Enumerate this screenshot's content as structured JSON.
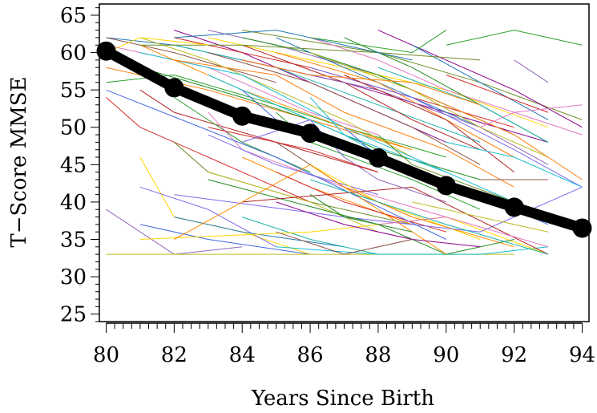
{
  "chart_data": {
    "type": "line",
    "title": "",
    "xlabel": "Years Since Birth",
    "ylabel": "T−Score MMSE",
    "xlim": [
      79.8,
      94.2
    ],
    "ylim": [
      24,
      66.5
    ],
    "x_ticks": [
      80,
      82,
      84,
      86,
      88,
      90,
      92,
      94
    ],
    "x_tick_labels": [
      "80",
      "82",
      "84",
      "86",
      "88",
      "90",
      "92",
      "94"
    ],
    "y_ticks": [
      25,
      30,
      35,
      40,
      45,
      50,
      55,
      60,
      65
    ],
    "y_tick_labels": [
      "25",
      "30",
      "35",
      "40",
      "45",
      "50",
      "55",
      "60",
      "65"
    ],
    "x_minor_step": 0.25,
    "y_minor_step": 1,
    "grid": false,
    "legend": "none",
    "mean_trajectory": {
      "color": "#000000",
      "x": [
        80,
        82,
        84,
        86,
        88,
        90,
        92,
        94
      ],
      "y": [
        60.2,
        55.3,
        51.5,
        49.2,
        45.9,
        42.2,
        39.3,
        36.5
      ]
    },
    "individual_colors": [
      "#1f77b4",
      "#ff7f0e",
      "#2ca02c",
      "#d62728",
      "#9467bd",
      "#8c564b",
      "#e377c2",
      "#bcbd22",
      "#17becf",
      "#ffd700",
      "#7b68ee",
      "#228b22",
      "#b22222",
      "#4169e1",
      "#ff8c00",
      "#8b008b",
      "#20b2aa",
      "#6b8e23"
    ],
    "individual_series": [
      {
        "x": [
          80,
          82,
          84,
          86,
          88
        ],
        "y": [
          62,
          61,
          59,
          57,
          55
        ]
      },
      {
        "x": [
          80,
          83,
          86,
          89
        ],
        "y": [
          58,
          55,
          51,
          47
        ]
      },
      {
        "x": [
          80,
          82,
          85,
          87,
          90
        ],
        "y": [
          56,
          57,
          53,
          50,
          46
        ]
      },
      {
        "x": [
          80,
          81,
          84,
          86
        ],
        "y": [
          54,
          50,
          44,
          40
        ]
      },
      {
        "x": [
          80,
          82,
          84
        ],
        "y": [
          39,
          33,
          34
        ]
      },
      {
        "x": [
          80,
          82,
          85
        ],
        "y": [
          62,
          60,
          56
        ]
      },
      {
        "x": [
          80,
          83,
          86,
          88
        ],
        "y": [
          61,
          58,
          52,
          49
        ]
      },
      {
        "x": [
          81,
          83,
          85,
          87,
          89
        ],
        "y": [
          62,
          59,
          55,
          51,
          46
        ]
      },
      {
        "x": [
          81,
          84,
          87,
          90
        ],
        "y": [
          60,
          57,
          50,
          44
        ]
      },
      {
        "x": [
          81,
          82,
          84,
          86
        ],
        "y": [
          46,
          38,
          36,
          33
        ]
      },
      {
        "x": [
          81,
          83,
          85
        ],
        "y": [
          42,
          39,
          34
        ]
      },
      {
        "x": [
          81,
          84,
          86,
          88,
          91
        ],
        "y": [
          58,
          54,
          51,
          47,
          43
        ]
      },
      {
        "x": [
          81,
          82,
          85,
          88
        ],
        "y": [
          55,
          52,
          48,
          44
        ]
      },
      {
        "x": [
          81,
          83,
          86
        ],
        "y": [
          37,
          35,
          33
        ]
      },
      {
        "x": [
          81,
          84,
          87,
          89
        ],
        "y": [
          61,
          55,
          50,
          47
        ]
      },
      {
        "x": [
          82,
          84,
          86,
          88,
          90
        ],
        "y": [
          63,
          60,
          56,
          52,
          48
        ]
      },
      {
        "x": [
          82,
          85,
          88,
          91
        ],
        "y": [
          61,
          58,
          53,
          48
        ]
      },
      {
        "x": [
          82,
          83,
          86,
          89
        ],
        "y": [
          48,
          44,
          40,
          37
        ]
      },
      {
        "x": [
          82,
          84,
          87
        ],
        "y": [
          38,
          36,
          34
        ]
      },
      {
        "x": [
          82,
          85,
          87,
          90,
          92
        ],
        "y": [
          59,
          57,
          52,
          47,
          42
        ]
      },
      {
        "x": [
          82,
          84,
          86
        ],
        "y": [
          54,
          48,
          44
        ]
      },
      {
        "x": [
          82,
          86,
          89,
          92
        ],
        "y": [
          62,
          58,
          54,
          50
        ]
      },
      {
        "x": [
          83,
          85,
          88,
          90
        ],
        "y": [
          63,
          61,
          57,
          53
        ]
      },
      {
        "x": [
          83,
          86,
          89,
          91
        ],
        "y": [
          60,
          56,
          50,
          45
        ]
      },
      {
        "x": [
          83,
          84,
          87,
          90
        ],
        "y": [
          52,
          47,
          42,
          38
        ]
      },
      {
        "x": [
          83,
          86,
          88
        ],
        "y": [
          44,
          40,
          36
        ]
      },
      {
        "x": [
          83,
          85,
          87,
          89
        ],
        "y": [
          57,
          53,
          49,
          44
        ]
      },
      {
        "x": [
          83,
          86,
          90,
          93
        ],
        "y": [
          62,
          59,
          55,
          50
        ]
      },
      {
        "x": [
          83,
          85,
          88
        ],
        "y": [
          49,
          45,
          41
        ]
      },
      {
        "x": [
          84,
          86,
          88,
          90,
          92
        ],
        "y": [
          62,
          60,
          57,
          53,
          49
        ]
      },
      {
        "x": [
          84,
          87,
          89,
          91
        ],
        "y": [
          61,
          56,
          51,
          47
        ]
      },
      {
        "x": [
          84,
          85,
          88,
          90
        ],
        "y": [
          55,
          51,
          46,
          42
        ]
      },
      {
        "x": [
          84,
          86,
          89
        ],
        "y": [
          46,
          42,
          37
        ]
      },
      {
        "x": [
          84,
          87,
          90,
          93
        ],
        "y": [
          59,
          56,
          52,
          48
        ]
      },
      {
        "x": [
          84,
          86,
          88
        ],
        "y": [
          38,
          35,
          33
        ]
      },
      {
        "x": [
          84,
          88,
          91,
          94
        ],
        "y": [
          63,
          60,
          56,
          51
        ]
      },
      {
        "x": [
          85,
          87,
          89,
          91
        ],
        "y": [
          62,
          58,
          54,
          50
        ]
      },
      {
        "x": [
          85,
          88,
          90,
          92
        ],
        "y": [
          60,
          56,
          51,
          46
        ]
      },
      {
        "x": [
          85,
          86,
          89,
          91
        ],
        "y": [
          52,
          48,
          43,
          39
        ]
      },
      {
        "x": [
          85,
          87,
          90
        ],
        "y": [
          44,
          40,
          36
        ]
      },
      {
        "x": [
          85,
          88,
          91,
          93
        ],
        "y": [
          58,
          55,
          50,
          45
        ]
      },
      {
        "x": [
          85,
          87,
          89
        ],
        "y": [
          48,
          42,
          38
        ]
      },
      {
        "x": [
          86,
          88,
          90,
          92,
          94
        ],
        "y": [
          62,
          59,
          55,
          52,
          49
        ]
      },
      {
        "x": [
          86,
          89,
          91,
          93
        ],
        "y": [
          60,
          55,
          50,
          46
        ]
      },
      {
        "x": [
          86,
          87,
          90,
          92
        ],
        "y": [
          54,
          49,
          44,
          40
        ]
      },
      {
        "x": [
          86,
          88,
          91
        ],
        "y": [
          45,
          40,
          35
        ]
      },
      {
        "x": [
          86,
          89,
          92,
          94
        ],
        "y": [
          58,
          54,
          47,
          42
        ]
      },
      {
        "x": [
          87,
          89,
          91,
          93
        ],
        "y": [
          62,
          58,
          53,
          48
        ]
      },
      {
        "x": [
          87,
          90,
          92
        ],
        "y": [
          57,
          51,
          44
        ]
      },
      {
        "x": [
          87,
          88,
          91,
          93
        ],
        "y": [
          50,
          46,
          41,
          37
        ]
      },
      {
        "x": [
          87,
          89,
          92
        ],
        "y": [
          42,
          38,
          34
        ]
      },
      {
        "x": [
          88,
          90,
          92,
          94
        ],
        "y": [
          63,
          59,
          55,
          50
        ]
      },
      {
        "x": [
          88,
          91,
          93
        ],
        "y": [
          58,
          53,
          48
        ]
      },
      {
        "x": [
          88,
          89,
          92,
          94
        ],
        "y": [
          49,
          45,
          40,
          37
        ]
      },
      {
        "x": [
          89,
          91,
          93
        ],
        "y": [
          61,
          56,
          51
        ]
      },
      {
        "x": [
          89,
          92,
          94
        ],
        "y": [
          55,
          49,
          43
        ]
      },
      {
        "x": [
          90,
          92,
          94
        ],
        "y": [
          61,
          63,
          61
        ]
      },
      {
        "x": [
          90,
          93
        ],
        "y": [
          57,
          52
        ]
      },
      {
        "x": [
          92,
          93
        ],
        "y": [
          59,
          56
        ]
      },
      {
        "x": [
          91,
          93
        ],
        "y": [
          43,
          43
        ]
      },
      {
        "x": [
          91,
          92,
          94
        ],
        "y": [
          50,
          52,
          53
        ]
      },
      {
        "x": [
          80,
          84,
          88,
          92
        ],
        "y": [
          33,
          33,
          33,
          33
        ]
      },
      {
        "x": [
          85,
          88,
          91,
          93
        ],
        "y": [
          34,
          33,
          33,
          34
        ]
      },
      {
        "x": [
          81,
          86,
          90,
          93
        ],
        "y": [
          35,
          36,
          38,
          33
        ]
      },
      {
        "x": [
          82,
          87,
          91,
          94
        ],
        "y": [
          41,
          38,
          36,
          42
        ]
      },
      {
        "x": [
          83,
          88,
          90,
          92
        ],
        "y": [
          43,
          37,
          33,
          35
        ]
      },
      {
        "x": [
          84,
          89,
          93
        ],
        "y": [
          40,
          42,
          33
        ]
      },
      {
        "x": [
          80,
          85,
          90
        ],
        "y": [
          55,
          46,
          35
        ]
      },
      {
        "x": [
          82,
          86,
          90
        ],
        "y": [
          35,
          45,
          33
        ]
      },
      {
        "x": [
          85,
          87,
          89,
          91
        ],
        "y": [
          40,
          37,
          35,
          34
        ]
      },
      {
        "x": [
          86,
          88,
          90,
          93
        ],
        "y": [
          43,
          40,
          37,
          33
        ]
      },
      {
        "x": [
          81,
          84,
          88,
          91
        ],
        "y": [
          61,
          61,
          60,
          59
        ]
      },
      {
        "x": [
          82,
          85,
          87,
          89
        ],
        "y": [
          62,
          63,
          61,
          59
        ]
      },
      {
        "x": [
          84,
          86,
          89,
          91
        ],
        "y": [
          59,
          57,
          56,
          53
        ]
      },
      {
        "x": [
          86,
          89,
          90
        ],
        "y": [
          62,
          60,
          63
        ]
      },
      {
        "x": [
          83,
          86,
          88
        ],
        "y": [
          50,
          47,
          44
        ]
      },
      {
        "x": [
          87,
          88,
          90
        ],
        "y": [
          46,
          43,
          40
        ]
      },
      {
        "x": [
          85,
          87,
          89
        ],
        "y": [
          36,
          33,
          35
        ]
      },
      {
        "x": [
          88,
          90,
          93
        ],
        "y": [
          37,
          38,
          34
        ]
      },
      {
        "x": [
          89,
          91,
          93
        ],
        "y": [
          40,
          38,
          36
        ]
      },
      {
        "x": [
          90,
          92,
          94
        ],
        "y": [
          48,
          46,
          42
        ]
      },
      {
        "x": [
          80,
          81,
          83
        ],
        "y": [
          60,
          62,
          61
        ]
      },
      {
        "x": [
          84,
          86,
          87
        ],
        "y": [
          48,
          51,
          46
        ]
      },
      {
        "x": [
          86,
          87,
          89
        ],
        "y": [
          41,
          38,
          36
        ]
      }
    ]
  }
}
